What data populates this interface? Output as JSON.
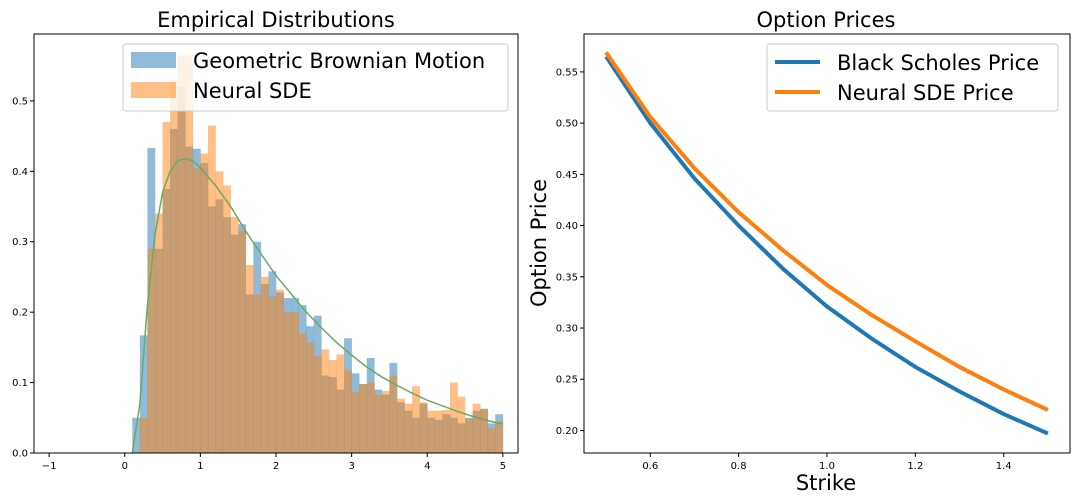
{
  "chart_data": [
    {
      "type": "bar",
      "title": "Empirical Distributions",
      "xlabel": "",
      "ylabel": "",
      "xlim": [
        -1.2,
        5.2
      ],
      "ylim": [
        0,
        0.595
      ],
      "xticks": [
        -1,
        0,
        1,
        2,
        3,
        4,
        5
      ],
      "xtick_labels": [
        "−1",
        "0",
        "1",
        "2",
        "3",
        "4",
        "5"
      ],
      "yticks": [
        0.0,
        0.1,
        0.2,
        0.3,
        0.4,
        0.5
      ],
      "ytick_labels": [
        "0.0",
        "0.1",
        "0.2",
        "0.3",
        "0.4",
        "0.5"
      ],
      "legend_position": "top-right",
      "bin_start": 0.1,
      "bin_width": 0.1,
      "series": [
        {
          "name": "Geometric Brownian Motion",
          "color": "#1f77b4",
          "alpha": 0.5,
          "values": [
            0.05,
            0.167,
            0.433,
            0.29,
            0.375,
            0.46,
            0.52,
            0.435,
            0.432,
            0.412,
            0.35,
            0.36,
            0.335,
            0.31,
            0.325,
            0.225,
            0.3,
            0.24,
            0.258,
            0.228,
            0.22,
            0.22,
            0.21,
            0.18,
            0.195,
            0.11,
            0.108,
            0.09,
            0.163,
            0.113,
            0.098,
            0.135,
            0.09,
            0.083,
            0.128,
            0.072,
            0.06,
            0.05,
            0.07,
            0.05,
            0.047,
            0.055,
            0.05,
            0.042,
            0.05,
            0.06,
            0.063,
            0.042,
            0.055
          ]
        },
        {
          "name": "Neural SDE",
          "color": "#ff7f0e",
          "alpha": 0.5,
          "values": [
            0,
            0.05,
            0.29,
            0.34,
            0.47,
            0.53,
            0.565,
            0.565,
            0.405,
            0.425,
            0.465,
            0.4,
            0.38,
            0.335,
            0.315,
            0.267,
            0.225,
            0.25,
            0.222,
            0.232,
            0.2,
            0.2,
            0.17,
            0.157,
            0.138,
            0.147,
            0.132,
            0.14,
            0.117,
            0.087,
            0.098,
            0.1,
            0.083,
            0.088,
            0.11,
            0.077,
            0.07,
            0.095,
            0.072,
            0.06,
            0.06,
            0.061,
            0.1,
            0.08,
            0.048,
            0.07,
            0.062,
            0.035,
            0.045
          ]
        }
      ],
      "density_curve": {
        "color": "#6aaa64",
        "x": [
          0.1,
          0.2,
          0.3,
          0.4,
          0.5,
          0.6,
          0.7,
          0.8,
          0.9,
          1.0,
          1.2,
          1.4,
          1.6,
          1.8,
          2.0,
          2.2,
          2.4,
          2.6,
          2.8,
          3.0,
          3.2,
          3.4,
          3.6,
          3.8,
          4.0,
          4.2,
          4.4,
          4.6,
          4.8,
          5.0
        ],
        "y": [
          0.0,
          0.07,
          0.21,
          0.31,
          0.37,
          0.4,
          0.415,
          0.418,
          0.415,
          0.405,
          0.38,
          0.35,
          0.315,
          0.283,
          0.252,
          0.226,
          0.2,
          0.178,
          0.157,
          0.139,
          0.122,
          0.108,
          0.096,
          0.085,
          0.075,
          0.067,
          0.059,
          0.052,
          0.046,
          0.041
        ]
      }
    },
    {
      "type": "line",
      "title": "Option Prices",
      "xlabel": "Strike",
      "ylabel": "Option Price",
      "xlim": [
        0.45,
        1.55
      ],
      "ylim": [
        0.178,
        0.587
      ],
      "xticks": [
        0.6,
        0.8,
        1.0,
        1.2,
        1.4
      ],
      "xtick_labels": [
        "0.6",
        "0.8",
        "1.0",
        "1.2",
        "1.4"
      ],
      "yticks": [
        0.2,
        0.25,
        0.3,
        0.35,
        0.4,
        0.45,
        0.5,
        0.55
      ],
      "ytick_labels": [
        "0.20",
        "0.25",
        "0.30",
        "0.35",
        "0.40",
        "0.45",
        "0.50",
        "0.55"
      ],
      "legend_position": "top-right",
      "series": [
        {
          "name": "Black Scholes Price",
          "color": "#1f77b4",
          "x": [
            0.5,
            0.6,
            0.7,
            0.8,
            0.9,
            1.0,
            1.1,
            1.2,
            1.3,
            1.4,
            1.5
          ],
          "y": [
            0.565,
            0.5,
            0.446,
            0.4,
            0.358,
            0.321,
            0.29,
            0.262,
            0.238,
            0.216,
            0.197
          ]
        },
        {
          "name": "Neural SDE Price",
          "color": "#ff7f0e",
          "x": [
            0.5,
            0.6,
            0.7,
            0.8,
            0.9,
            1.0,
            1.1,
            1.2,
            1.3,
            1.4,
            1.5
          ],
          "y": [
            0.569,
            0.506,
            0.456,
            0.413,
            0.376,
            0.342,
            0.313,
            0.287,
            0.262,
            0.24,
            0.22
          ]
        }
      ]
    }
  ]
}
